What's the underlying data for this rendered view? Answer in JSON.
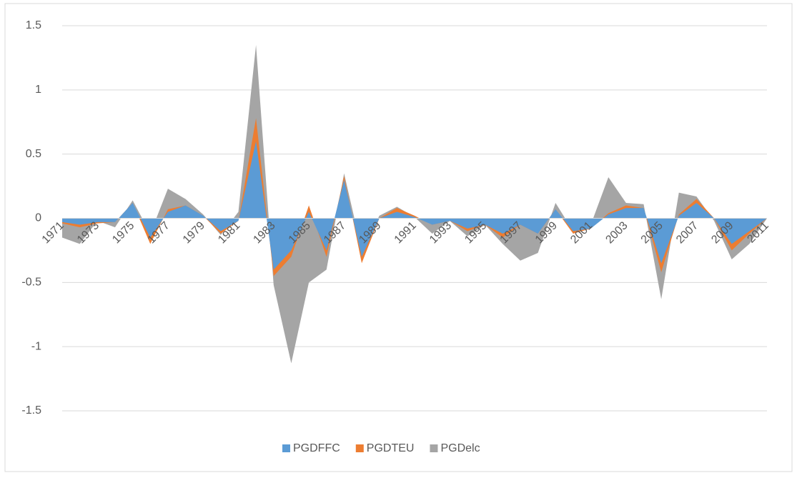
{
  "chart_data": {
    "type": "area",
    "categories": [
      "1971",
      null,
      "1973",
      null,
      "1975",
      null,
      "1977",
      null,
      "1979",
      null,
      "1981",
      null,
      "1983",
      null,
      "1985",
      null,
      "1987",
      null,
      "1989",
      null,
      "1991",
      null,
      "1993",
      null,
      "1995",
      null,
      "1997",
      null,
      "1999",
      null,
      "2001",
      null,
      "2003",
      null,
      "2005",
      null,
      "2007",
      null,
      "2009",
      null,
      "2011"
    ],
    "series": [
      {
        "name": "PGDFFC",
        "color": "#5b9bd5",
        "values": [
          -0.03,
          -0.05,
          -0.03,
          -0.03,
          0.12,
          -0.15,
          0.05,
          0.1,
          0.02,
          -0.1,
          -0.02,
          0.6,
          -0.4,
          -0.25,
          0.05,
          -0.25,
          0.3,
          -0.3,
          0.0,
          0.05,
          0.01,
          -0.05,
          -0.02,
          -0.08,
          -0.05,
          -0.12,
          -0.05,
          -0.12,
          0.07,
          -0.1,
          -0.08,
          0.03,
          0.08,
          0.08,
          -0.35,
          0.02,
          0.12,
          0.0,
          -0.2,
          -0.1,
          0
        ]
      },
      {
        "name": "PGDTEU",
        "color": "#ed7d31",
        "values": [
          -0.04,
          -0.07,
          -0.04,
          -0.03,
          0.12,
          -0.2,
          0.07,
          0.1,
          0.02,
          -0.12,
          -0.02,
          0.78,
          -0.45,
          -0.3,
          0.1,
          -0.3,
          0.33,
          -0.35,
          0.0,
          0.08,
          0.02,
          -0.05,
          -0.02,
          -0.1,
          -0.05,
          -0.15,
          -0.05,
          -0.12,
          0.07,
          -0.12,
          -0.08,
          0.04,
          0.1,
          0.08,
          -0.42,
          0.03,
          0.15,
          0.0,
          -0.25,
          -0.12,
          0
        ]
      },
      {
        "name": "PGDelc",
        "color": "#a5a5a5",
        "values": [
          -0.15,
          -0.2,
          -0.02,
          -0.07,
          0.14,
          -0.12,
          0.23,
          0.15,
          0.03,
          -0.13,
          0.05,
          1.35,
          -0.52,
          -1.13,
          -0.5,
          -0.4,
          0.35,
          -0.25,
          0.02,
          0.09,
          0.01,
          -0.12,
          -0.02,
          -0.14,
          -0.05,
          -0.2,
          -0.33,
          -0.27,
          0.12,
          -0.1,
          -0.05,
          0.32,
          0.12,
          0.11,
          -0.63,
          0.2,
          0.17,
          -0.02,
          -0.32,
          -0.2,
          0
        ]
      }
    ],
    "ylim": [
      -1.5,
      1.5
    ],
    "yticks": [
      1.5,
      1,
      0.5,
      0,
      -0.5,
      -1,
      -1.5
    ],
    "grid": true,
    "legend": "bottom"
  }
}
